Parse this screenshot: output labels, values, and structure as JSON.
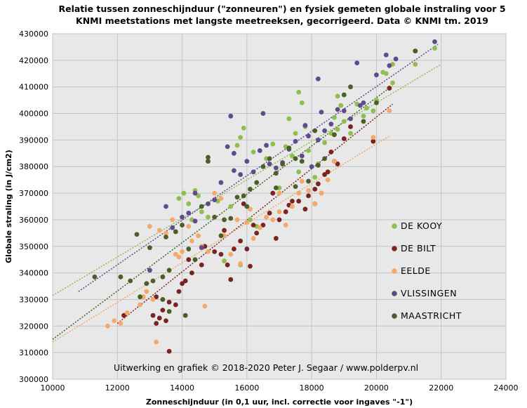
{
  "chart_data": {
    "type": "scatter",
    "title_line1": "Relatie  tussen  zonneschijnduur  (\"zonneuren\")  en fysiek gemeten globale instraling  voor 5",
    "title_line2": "KNMI  meetstations met langste meetreeksen, gecorrigeerd. Data © KNMI  tm. 2019",
    "xlabel": "Zonneschijnduur (in 0,1 uur, incl. correctie voor ingaves \"-1\")",
    "ylabel": "Globale straling (in J/cm2)",
    "credit": "Uitwerking  en grafiek  © 2018-2020  Peter J. Segaar / www.polderpv.nl",
    "xlim": [
      10000,
      24000
    ],
    "ylim": [
      300000,
      430000
    ],
    "xticks": [
      10000,
      12000,
      14000,
      16000,
      18000,
      20000,
      22000,
      24000
    ],
    "yticks": [
      300000,
      310000,
      320000,
      330000,
      340000,
      350000,
      360000,
      370000,
      380000,
      390000,
      400000,
      410000,
      420000,
      430000
    ],
    "grid": true,
    "legend_position": "right",
    "background": "#e8e8e8",
    "series": [
      {
        "name": "DE KOOY",
        "color": "#8fbe4f",
        "trendline": [
          [
            10000,
            331500
          ],
          [
            22000,
            418500
          ]
        ],
        "points": [
          [
            14050,
            370000
          ],
          [
            14400,
            371000
          ],
          [
            14200,
            366000
          ],
          [
            13900,
            368000
          ],
          [
            14600,
            363000
          ],
          [
            14500,
            369000
          ],
          [
            14800,
            361000
          ],
          [
            14300,
            360000
          ],
          [
            15100,
            367000
          ],
          [
            15900,
            394500
          ],
          [
            15800,
            391000
          ],
          [
            15700,
            388000
          ],
          [
            16200,
            385500
          ],
          [
            16600,
            383000
          ],
          [
            16800,
            388500
          ],
          [
            17200,
            387500
          ],
          [
            17300,
            398000
          ],
          [
            17600,
            408000
          ],
          [
            17700,
            404000
          ],
          [
            17500,
            392500
          ],
          [
            17400,
            384000
          ],
          [
            17800,
            395000
          ],
          [
            17900,
            386000
          ],
          [
            18200,
            381000
          ],
          [
            18400,
            389000
          ],
          [
            18600,
            392500
          ],
          [
            18700,
            398500
          ],
          [
            18800,
            406500
          ],
          [
            18900,
            403000
          ],
          [
            19000,
            397000
          ],
          [
            19200,
            392500
          ],
          [
            19400,
            403500
          ],
          [
            19700,
            402000
          ],
          [
            19600,
            399000
          ],
          [
            20000,
            405000
          ],
          [
            20200,
            415500
          ],
          [
            20300,
            415000
          ],
          [
            20500,
            418500
          ],
          [
            21200,
            418500
          ],
          [
            21800,
            424500
          ],
          [
            20400,
            409500
          ],
          [
            20500,
            411500
          ],
          [
            18300,
            370000
          ],
          [
            15800,
            343000
          ],
          [
            15300,
            344500
          ],
          [
            16300,
            357500
          ],
          [
            16100,
            360000
          ],
          [
            15500,
            365000
          ],
          [
            17000,
            372000
          ],
          [
            17600,
            378000
          ],
          [
            18100,
            376000
          ],
          [
            18800,
            394000
          ],
          [
            19900,
            401000
          ]
        ]
      },
      {
        "name": "DE BILT",
        "color": "#7a2323",
        "trendline": [
          [
            12000,
            321000
          ],
          [
            20500,
            403500
          ]
        ],
        "points": [
          [
            13600,
            310500
          ],
          [
            12200,
            324000
          ],
          [
            13100,
            324000
          ],
          [
            13300,
            323000
          ],
          [
            13200,
            321000
          ],
          [
            13500,
            322000
          ],
          [
            13400,
            326000
          ],
          [
            13600,
            329000
          ],
          [
            13800,
            328000
          ],
          [
            13900,
            333000
          ],
          [
            14000,
            336000
          ],
          [
            14100,
            337000
          ],
          [
            14300,
            340000
          ],
          [
            14700,
            350000
          ],
          [
            15000,
            348000
          ],
          [
            15200,
            347000
          ],
          [
            15400,
            343000
          ],
          [
            15600,
            349000
          ],
          [
            15800,
            352000
          ],
          [
            16000,
            349000
          ],
          [
            16100,
            342500
          ],
          [
            16300,
            355000
          ],
          [
            16500,
            358000
          ],
          [
            16700,
            362500
          ],
          [
            16900,
            353000
          ],
          [
            17000,
            360000
          ],
          [
            17200,
            363000
          ],
          [
            17400,
            367000
          ],
          [
            17600,
            367000
          ],
          [
            17800,
            364000
          ],
          [
            17900,
            369000
          ],
          [
            18100,
            366000
          ],
          [
            18200,
            373500
          ],
          [
            18400,
            377000
          ],
          [
            18600,
            385500
          ],
          [
            18800,
            381000
          ],
          [
            19000,
            390500
          ],
          [
            19200,
            395000
          ],
          [
            19900,
            389500
          ],
          [
            20400,
            409500
          ],
          [
            13200,
            331000
          ],
          [
            14200,
            345000
          ],
          [
            15300,
            356000
          ],
          [
            15900,
            366000
          ],
          [
            16200,
            358000
          ],
          [
            16800,
            370000
          ],
          [
            17300,
            365500
          ],
          [
            18100,
            371500
          ],
          [
            18500,
            378000
          ],
          [
            18700,
            382000
          ],
          [
            15500,
            337500
          ],
          [
            14600,
            343000
          ]
        ]
      },
      {
        "name": "EELDE",
        "color": "#f4a96a",
        "trendline": [
          [
            10000,
            314000
          ],
          [
            20400,
            391500
          ]
        ],
        "points": [
          [
            11700,
            320000
          ],
          [
            12100,
            321000
          ],
          [
            11900,
            322000
          ],
          [
            12300,
            325000
          ],
          [
            12700,
            328000
          ],
          [
            12800,
            331000
          ],
          [
            12900,
            333000
          ],
          [
            13000,
            357500
          ],
          [
            13200,
            314000
          ],
          [
            13300,
            356000
          ],
          [
            13500,
            355000
          ],
          [
            13700,
            360000
          ],
          [
            13800,
            347000
          ],
          [
            13900,
            346000
          ],
          [
            14000,
            348000
          ],
          [
            14200,
            357500
          ],
          [
            14300,
            352000
          ],
          [
            14500,
            354000
          ],
          [
            14600,
            350000
          ],
          [
            14700,
            327500
          ],
          [
            14800,
            348000
          ],
          [
            15000,
            361000
          ],
          [
            15200,
            368000
          ],
          [
            15300,
            354000
          ],
          [
            15500,
            347000
          ],
          [
            15700,
            360000
          ],
          [
            15800,
            343500
          ],
          [
            16000,
            359000
          ],
          [
            16200,
            353000
          ],
          [
            16400,
            357000
          ],
          [
            16600,
            361000
          ],
          [
            16800,
            360000
          ],
          [
            17000,
            370000
          ],
          [
            17200,
            358000
          ],
          [
            17400,
            365000
          ],
          [
            17600,
            370000
          ],
          [
            17900,
            371000
          ],
          [
            18100,
            366000
          ],
          [
            18300,
            370000
          ],
          [
            18500,
            375000
          ],
          [
            18700,
            382000
          ],
          [
            19900,
            391000
          ],
          [
            20400,
            401000
          ],
          [
            13100,
            330000
          ],
          [
            15000,
            370000
          ],
          [
            16100,
            364000
          ],
          [
            17000,
            363000
          ],
          [
            17700,
            374500
          ]
        ]
      },
      {
        "name": "VLISSINGEN",
        "color": "#5f4b8b",
        "trendline": [
          [
            10800,
            333000
          ],
          [
            21900,
            426000
          ]
        ],
        "points": [
          [
            13500,
            365000
          ],
          [
            13700,
            357000
          ],
          [
            14000,
            361000
          ],
          [
            14200,
            362500
          ],
          [
            14400,
            359500
          ],
          [
            14600,
            349500
          ],
          [
            14800,
            366000
          ],
          [
            15000,
            367500
          ],
          [
            15200,
            374000
          ],
          [
            15400,
            387500
          ],
          [
            15500,
            399000
          ],
          [
            15600,
            378500
          ],
          [
            15800,
            377000
          ],
          [
            16000,
            382000
          ],
          [
            16200,
            378000
          ],
          [
            16400,
            386000
          ],
          [
            16500,
            400000
          ],
          [
            16700,
            381000
          ],
          [
            16900,
            379500
          ],
          [
            17100,
            381500
          ],
          [
            17300,
            386500
          ],
          [
            17500,
            389500
          ],
          [
            17700,
            384000
          ],
          [
            17900,
            391500
          ],
          [
            18000,
            380000
          ],
          [
            18200,
            390000
          ],
          [
            18300,
            400500
          ],
          [
            18400,
            393500
          ],
          [
            18600,
            396000
          ],
          [
            18800,
            401500
          ],
          [
            19000,
            401000
          ],
          [
            19200,
            398000
          ],
          [
            19400,
            419000
          ],
          [
            19600,
            404000
          ],
          [
            20000,
            414500
          ],
          [
            20300,
            422000
          ],
          [
            20600,
            420500
          ],
          [
            21200,
            423500
          ],
          [
            21800,
            427000
          ],
          [
            13000,
            341000
          ],
          [
            14400,
            370000
          ],
          [
            15600,
            385000
          ],
          [
            16600,
            388000
          ],
          [
            17800,
            395500
          ],
          [
            18200,
            413000
          ],
          [
            19500,
            403000
          ],
          [
            20400,
            418000
          ]
        ]
      },
      {
        "name": "MAASTRICHT",
        "color": "#4a5e27",
        "trendline": [
          [
            10000,
            315000
          ],
          [
            20500,
            410500
          ]
        ],
        "points": [
          [
            11300,
            338500
          ],
          [
            12100,
            338500
          ],
          [
            12400,
            337000
          ],
          [
            12600,
            354500
          ],
          [
            12700,
            331000
          ],
          [
            12900,
            336000
          ],
          [
            13000,
            349500
          ],
          [
            13100,
            337000
          ],
          [
            13400,
            338500
          ],
          [
            13500,
            353500
          ],
          [
            13600,
            341000
          ],
          [
            13800,
            355500
          ],
          [
            14000,
            358000
          ],
          [
            14100,
            324000
          ],
          [
            14200,
            349000
          ],
          [
            14400,
            345000
          ],
          [
            14600,
            365000
          ],
          [
            14800,
            383500
          ],
          [
            14800,
            382000
          ],
          [
            15000,
            361000
          ],
          [
            15300,
            360000
          ],
          [
            15500,
            360500
          ],
          [
            15700,
            368500
          ],
          [
            15900,
            369000
          ],
          [
            16100,
            371500
          ],
          [
            16300,
            374000
          ],
          [
            16500,
            380000
          ],
          [
            16700,
            383000
          ],
          [
            16900,
            377500
          ],
          [
            17100,
            381000
          ],
          [
            17300,
            387000
          ],
          [
            17500,
            383000
          ],
          [
            17700,
            382000
          ],
          [
            17900,
            374500
          ],
          [
            18100,
            393500
          ],
          [
            18400,
            383000
          ],
          [
            18700,
            392000
          ],
          [
            19000,
            407000
          ],
          [
            19200,
            410000
          ],
          [
            20000,
            404000
          ],
          [
            21200,
            423500
          ],
          [
            13400,
            330000
          ],
          [
            15200,
            354000
          ],
          [
            16000,
            365000
          ],
          [
            16900,
            372000
          ],
          [
            17500,
            372500
          ],
          [
            18200,
            380500
          ],
          [
            19600,
            397000
          ],
          [
            13600,
            325500
          ]
        ]
      }
    ]
  }
}
